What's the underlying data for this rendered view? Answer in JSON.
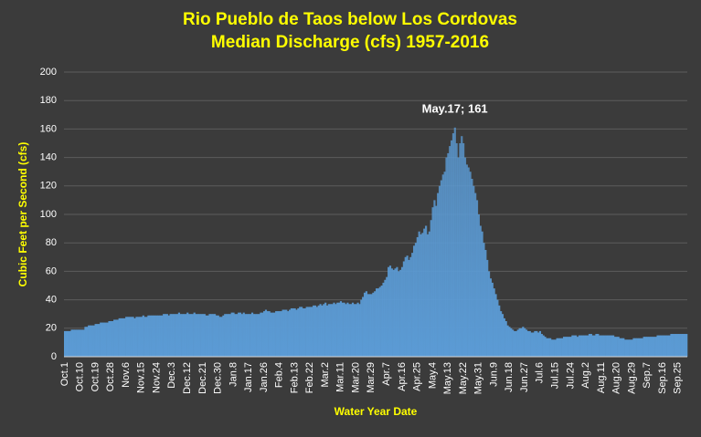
{
  "chart_data": {
    "type": "bar",
    "title": [
      "Rio Pueblo de Taos below Los Cordovas",
      "Median Discharge (cfs) 1957-2016"
    ],
    "x_label": "Water Year Date",
    "y_label": "Cubic Feet per Second (cfs)",
    "annotation": "May.17; 161",
    "color": "#5b9bd5",
    "grid": true,
    "ylim": [
      0,
      200
    ],
    "yticks": [
      0,
      20,
      40,
      60,
      80,
      100,
      120,
      140,
      160,
      180,
      200
    ],
    "categories": [
      "Oct.1",
      null,
      null,
      null,
      null,
      null,
      null,
      null,
      null,
      "Oct.10",
      null,
      null,
      null,
      null,
      null,
      null,
      null,
      null,
      "Oct.19",
      null,
      null,
      null,
      null,
      null,
      null,
      null,
      null,
      "Oct.28",
      null,
      null,
      null,
      null,
      null,
      null,
      null,
      null,
      "Nov.6",
      null,
      null,
      null,
      null,
      null,
      null,
      null,
      null,
      "Nov.15",
      null,
      null,
      null,
      null,
      null,
      null,
      null,
      null,
      "Nov.24",
      null,
      null,
      null,
      null,
      null,
      null,
      null,
      null,
      "Dec.3",
      null,
      null,
      null,
      null,
      null,
      null,
      null,
      null,
      "Dec.12",
      null,
      null,
      null,
      null,
      null,
      null,
      null,
      null,
      "Dec.21",
      null,
      null,
      null,
      null,
      null,
      null,
      null,
      null,
      "Dec.30",
      null,
      null,
      null,
      null,
      null,
      null,
      null,
      null,
      "Jan.8",
      null,
      null,
      null,
      null,
      null,
      null,
      null,
      null,
      "Jan.17",
      null,
      null,
      null,
      null,
      null,
      null,
      null,
      null,
      "Jan.26",
      null,
      null,
      null,
      null,
      null,
      null,
      null,
      null,
      "Feb.4",
      null,
      null,
      null,
      null,
      null,
      null,
      null,
      null,
      "Feb.13",
      null,
      null,
      null,
      null,
      null,
      null,
      null,
      null,
      "Feb.22",
      null,
      null,
      null,
      null,
      null,
      null,
      null,
      null,
      "Mar.2",
      null,
      null,
      null,
      null,
      null,
      null,
      null,
      null,
      "Mar.11",
      null,
      null,
      null,
      null,
      null,
      null,
      null,
      null,
      "Mar.20",
      null,
      null,
      null,
      null,
      null,
      null,
      null,
      null,
      "Mar.29",
      null,
      null,
      null,
      null,
      null,
      null,
      null,
      null,
      "Apr.7",
      null,
      null,
      null,
      null,
      null,
      null,
      null,
      null,
      "Apr.16",
      null,
      null,
      null,
      null,
      null,
      null,
      null,
      null,
      "Apr.25",
      null,
      null,
      null,
      null,
      null,
      null,
      null,
      null,
      "May.4",
      null,
      null,
      null,
      null,
      null,
      null,
      null,
      null,
      "May.13",
      null,
      null,
      null,
      null,
      null,
      null,
      null,
      null,
      "May.22",
      null,
      null,
      null,
      null,
      null,
      null,
      null,
      null,
      "May.31",
      null,
      null,
      null,
      null,
      null,
      null,
      null,
      null,
      "Jun.9",
      null,
      null,
      null,
      null,
      null,
      null,
      null,
      null,
      "Jun.18",
      null,
      null,
      null,
      null,
      null,
      null,
      null,
      null,
      "Jun.27",
      null,
      null,
      null,
      null,
      null,
      null,
      null,
      null,
      "Jul.6",
      null,
      null,
      null,
      null,
      null,
      null,
      null,
      null,
      "Jul.15",
      null,
      null,
      null,
      null,
      null,
      null,
      null,
      null,
      "Jul.24",
      null,
      null,
      null,
      null,
      null,
      null,
      null,
      null,
      "Aug.2",
      null,
      null,
      null,
      null,
      null,
      null,
      null,
      null,
      "Aug.11",
      null,
      null,
      null,
      null,
      null,
      null,
      null,
      null,
      "Aug.20",
      null,
      null,
      null,
      null,
      null,
      null,
      null,
      null,
      "Aug.29",
      null,
      null,
      null,
      null,
      null,
      null,
      null,
      null,
      "Sep.7",
      null,
      null,
      null,
      null,
      null,
      null,
      null,
      null,
      "Sep.16",
      null,
      null,
      null,
      null,
      null,
      null,
      null,
      null,
      "Sep.25",
      null,
      null,
      null,
      null,
      null
    ],
    "values": [
      18,
      18,
      18,
      18,
      19,
      19,
      19,
      19,
      19,
      19,
      19,
      19,
      21,
      21,
      22,
      22,
      22,
      22,
      23,
      23,
      23,
      24,
      24,
      24,
      24,
      24,
      25,
      25,
      25,
      26,
      26,
      26,
      27,
      27,
      27,
      27,
      28,
      28,
      28,
      28,
      28,
      27,
      28,
      28,
      28,
      28,
      29,
      28,
      28,
      29,
      29,
      29,
      29,
      29,
      29,
      29,
      29,
      29,
      30,
      30,
      30,
      29,
      30,
      30,
      30,
      30,
      30,
      31,
      30,
      30,
      30,
      30,
      31,
      30,
      30,
      30,
      31,
      30,
      30,
      30,
      30,
      30,
      30,
      29,
      29,
      30,
      30,
      30,
      30,
      29,
      29,
      28,
      28,
      29,
      30,
      30,
      30,
      30,
      31,
      31,
      30,
      30,
      31,
      31,
      30,
      31,
      30,
      30,
      30,
      30,
      31,
      30,
      30,
      30,
      30,
      31,
      31,
      32,
      33,
      32,
      32,
      31,
      31,
      31,
      32,
      32,
      32,
      32,
      33,
      33,
      33,
      32,
      33,
      34,
      34,
      34,
      33,
      34,
      35,
      35,
      34,
      34,
      35,
      35,
      35,
      35,
      36,
      36,
      35,
      36,
      37,
      36,
      37,
      38,
      36,
      37,
      37,
      37,
      38,
      37,
      38,
      38,
      39,
      38,
      38,
      37,
      38,
      37,
      37,
      38,
      37,
      37,
      38,
      37,
      40,
      42,
      45,
      46,
      44,
      44,
      44,
      45,
      46,
      48,
      48,
      49,
      50,
      52,
      54,
      56,
      63,
      64,
      62,
      61,
      62,
      63,
      60,
      61,
      63,
      67,
      70,
      71,
      68,
      70,
      73,
      78,
      80,
      84,
      88,
      86,
      87,
      90,
      92,
      86,
      88,
      96,
      105,
      110,
      106,
      115,
      120,
      124,
      128,
      130,
      140,
      143,
      148,
      152,
      157,
      161,
      150,
      140,
      150,
      155,
      150,
      140,
      135,
      133,
      130,
      125,
      120,
      115,
      110,
      100,
      92,
      88,
      80,
      75,
      68,
      60,
      55,
      52,
      48,
      44,
      40,
      36,
      32,
      30,
      27,
      25,
      22,
      21,
      20,
      19,
      18,
      18,
      19,
      20,
      20,
      21,
      20,
      19,
      18,
      18,
      17,
      17,
      18,
      18,
      17,
      18,
      16,
      15,
      14,
      13,
      13,
      13,
      12,
      12,
      12,
      13,
      13,
      13,
      13,
      14,
      14,
      14,
      14,
      14,
      15,
      15,
      15,
      14,
      15,
      15,
      15,
      15,
      15,
      15,
      16,
      16,
      15,
      15,
      16,
      16,
      15,
      15,
      15,
      15,
      15,
      15,
      15,
      15,
      15,
      14,
      14,
      14,
      13,
      13,
      13,
      12,
      12,
      12,
      12,
      12,
      13,
      13,
      13,
      13,
      13,
      13,
      14,
      14,
      14,
      14,
      14,
      14,
      14,
      14,
      15,
      15,
      15,
      15,
      15,
      15,
      15,
      15,
      16,
      16,
      16,
      16,
      16,
      16,
      16,
      16,
      16,
      16
    ]
  }
}
